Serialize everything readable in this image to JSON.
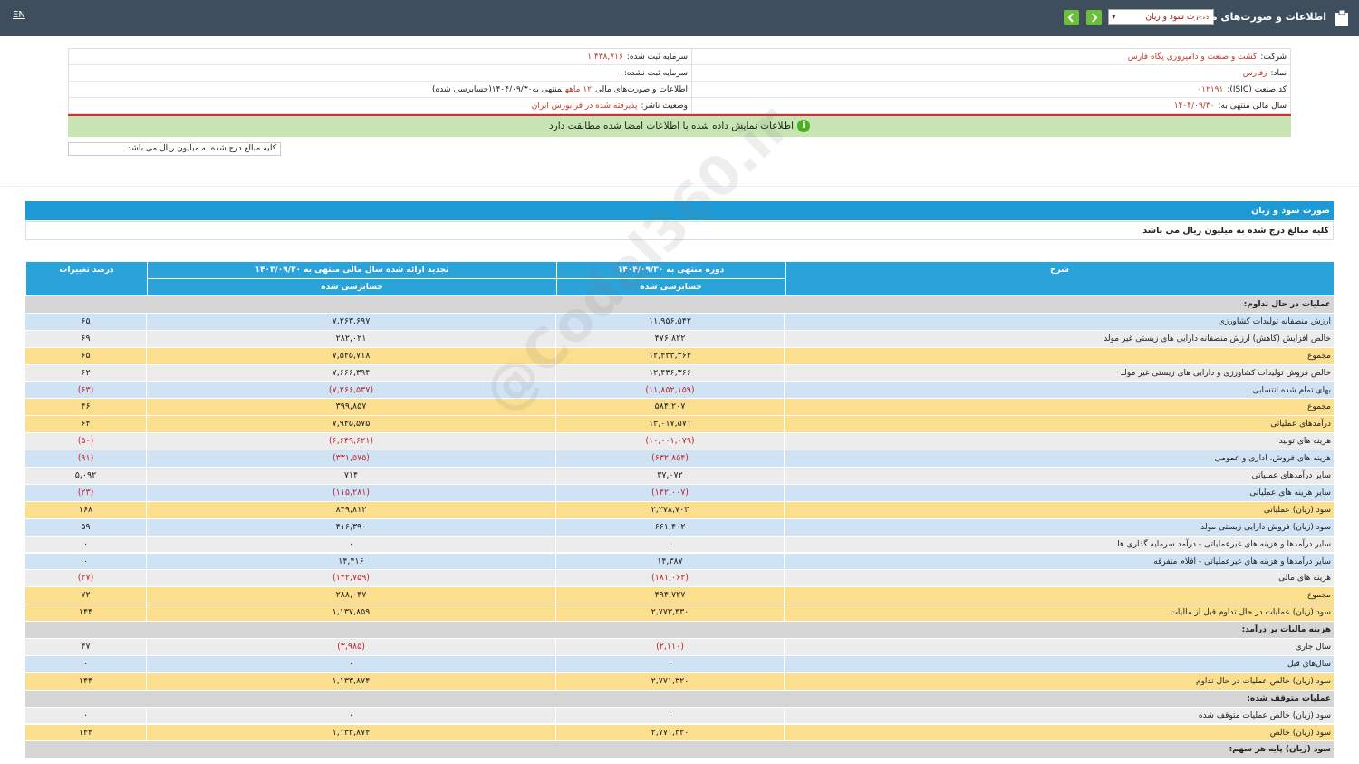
{
  "topbar": {
    "title": "اطلاعات و صورت‌های مالی",
    "select": "صورت سود و زیان",
    "lang": "EN"
  },
  "info": {
    "right": [
      {
        "label": "شرکت:",
        "value": "کشت و صنعت و دامپروری پگاه فارس"
      },
      {
        "label": "نماد:",
        "value": "زفارس"
      },
      {
        "label": "کد صنعت (ISIC):",
        "value": "۰۱۲۱۹۱"
      },
      {
        "label": "سال مالی منتهی به:",
        "value": "۱۴۰۴/۰۹/۳۰"
      }
    ],
    "left": [
      {
        "label": "سرمایه ثبت شده:",
        "value": "۱,۴۳۸,۷۱۶"
      },
      {
        "label": "سرمایه ثبت نشده:",
        "value": "۰"
      },
      {
        "label": "اطلاعات و صورت‌های مالی",
        "value": "۱۲ ماهه",
        "suffix": "منتهی به۱۴۰۴/۰۹/۳۰(حسابرسی شده)"
      },
      {
        "label": "وضعیت ناشر:",
        "value": "پذیرفته شده در فرابورس ایران"
      }
    ],
    "notice": "اطلاعات نمایش داده شده با اطلاعات امضا شده مطابقت دارد",
    "unit": "کلیه مبالغ درج شده به میلیون ریال می باشد"
  },
  "section": {
    "title": "صورت سود و زیان",
    "unit": "کلیه مبالغ درج شده به میلیون ریال می باشد"
  },
  "watermark": "@Codal360.ir",
  "table": {
    "headers": [
      "شرح",
      "دوره منتهی به ۱۴۰۴/۰۹/۳۰",
      "تجدید ارائه شده سال مالی منتهی به ۱۴۰۳/۰۹/۳۰",
      "درصد تغییرات"
    ],
    "subheaders": [
      "حسابرسی شده",
      "حسابرسی شده"
    ],
    "rows": [
      {
        "kind": "section",
        "cells": [
          "عملیات در حال تداوم:"
        ]
      },
      {
        "kind": "shaded",
        "cells": [
          "ارزش منصفانه تولیدات کشاورزی",
          "۱۱,۹۵۶,۵۴۲",
          "۷,۲۶۳,۶۹۷",
          "۶۵"
        ]
      },
      {
        "kind": "plain",
        "cells": [
          "خالص افزایش (کاهش) ارزش منصفانه دارایی های زیستی غیر مولد",
          "۴۷۶,۸۲۲",
          "۲۸۲,۰۲۱",
          "۶۹"
        ]
      },
      {
        "kind": "total",
        "cells": [
          "مجموع",
          "۱۲,۴۳۳,۳۶۴",
          "۷,۵۴۵,۷۱۸",
          "۶۵"
        ]
      },
      {
        "kind": "plain",
        "cells": [
          "خالص فروش تولیدات کشاورزی و دارایی های زیستی غیر مولد",
          "۱۲,۴۳۶,۳۶۶",
          "۷,۶۶۶,۳۹۴",
          "۶۲"
        ]
      },
      {
        "kind": "shaded",
        "cells": [
          "بهای تمام شده انتسابی",
          "(۱۱,۸۵۲,۱۵۹)",
          "(۷,۲۶۶,۵۳۷)",
          "(۶۳)"
        ]
      },
      {
        "kind": "total",
        "cells": [
          "مجموع",
          "۵۸۴,۲۰۷",
          "۳۹۹,۸۵۷",
          "۴۶"
        ]
      },
      {
        "kind": "total",
        "cells": [
          "درآمدهای عملیاتی",
          "۱۳,۰۱۷,۵۷۱",
          "۷,۹۴۵,۵۷۵",
          "۶۴"
        ]
      },
      {
        "kind": "plain",
        "cells": [
          "هزینه های تولید",
          "(۱۰,۰۰۱,۰۷۹)",
          "(۶,۶۴۹,۶۲۱)",
          "(۵۰)"
        ]
      },
      {
        "kind": "shaded",
        "cells": [
          "هزینه های فروش، اداری و عمومی",
          "(۶۳۲,۸۵۴)",
          "(۳۳۱,۵۷۵)",
          "(۹۱)"
        ]
      },
      {
        "kind": "plain",
        "cells": [
          "سایر درآمدهای عملیاتی",
          "۳۷,۰۷۲",
          "۷۱۴",
          "۵,۰۹۲"
        ]
      },
      {
        "kind": "shaded",
        "cells": [
          "سایر هزینه های عملیاتی",
          "(۱۴۲,۰۰۷)",
          "(۱۱۵,۲۸۱)",
          "(۲۳)"
        ]
      },
      {
        "kind": "total",
        "cells": [
          "سود (زیان) عملیاتی",
          "۲,۲۷۸,۷۰۳",
          "۸۴۹,۸۱۲",
          "۱۶۸"
        ]
      },
      {
        "kind": "shaded",
        "cells": [
          "سود (زیان) فروش دارایی زیستی مولد",
          "۶۶۱,۴۰۲",
          "۴۱۶,۳۹۰",
          "۵۹"
        ]
      },
      {
        "kind": "plain",
        "cells": [
          "سایر درآمدها و هزینه های غیرعملیاتی - درآمد سرمایه گذاری ها",
          "۰",
          "۰",
          "۰"
        ]
      },
      {
        "kind": "shaded",
        "cells": [
          "سایر درآمدها و هزینه های غیرعملیاتی - اقلام متفرقه",
          "۱۴,۳۸۷",
          "۱۴,۴۱۶",
          "۰"
        ]
      },
      {
        "kind": "plain",
        "cells": [
          "هزینه های مالی",
          "(۱۸۱,۰۶۲)",
          "(۱۴۲,۷۵۹)",
          "(۲۷)"
        ]
      },
      {
        "kind": "total",
        "cells": [
          "مجموع",
          "۴۹۴,۷۲۷",
          "۲۸۸,۰۴۷",
          "۷۲"
        ]
      },
      {
        "kind": "total",
        "cells": [
          "سود (زیان) عملیات در حال تداوم قبل از مالیات",
          "۲,۷۷۳,۴۳۰",
          "۱,۱۳۷,۸۵۹",
          "۱۴۴"
        ]
      },
      {
        "kind": "section",
        "cells": [
          "هزینه مالیات بر درآمد:"
        ]
      },
      {
        "kind": "plain",
        "cells": [
          "سال جاری",
          "(۲,۱۱۰)",
          "(۳,۹۸۵)",
          "۴۷"
        ]
      },
      {
        "kind": "shaded",
        "cells": [
          "سال‌های قبل",
          "۰",
          "۰",
          "۰"
        ]
      },
      {
        "kind": "total",
        "cells": [
          "سود (زیان) خالص عملیات در حال تداوم",
          "۲,۷۷۱,۳۲۰",
          "۱,۱۳۳,۸۷۴",
          "۱۴۴"
        ]
      },
      {
        "kind": "section",
        "cells": [
          "عملیات متوقف شده:"
        ]
      },
      {
        "kind": "plain",
        "cells": [
          "سود (زیان) خالص عملیات متوقف شده",
          "۰",
          "۰",
          "۰"
        ]
      },
      {
        "kind": "total",
        "cells": [
          "سود (زیان) خالص",
          "۲,۷۷۱,۳۲۰",
          "۱,۱۳۳,۸۷۴",
          "۱۴۴"
        ]
      },
      {
        "kind": "section",
        "cells": [
          "سود (زیان) پایه هر سهم:"
        ]
      }
    ]
  }
}
